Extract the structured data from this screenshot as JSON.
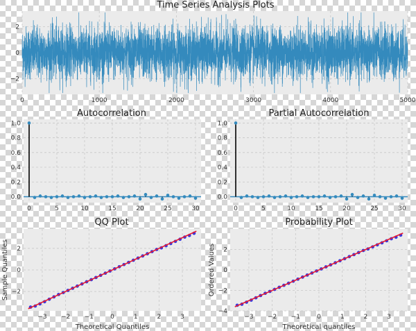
{
  "colors": {
    "panel_bg": "#ebebeb",
    "grid": "#c8c8c8",
    "series": "#348abd",
    "stem": "#000000",
    "qq_points": "#1a1adb",
    "qq_line": "#e8182e"
  },
  "chart_data": [
    {
      "type": "line",
      "title": "Time Series Analysis Plots",
      "xlabel": "",
      "ylabel": "",
      "xlim": [
        0,
        5000
      ],
      "ylim": [
        -3.2,
        3.2
      ],
      "xticks": [
        "0",
        "1000",
        "2000",
        "3000",
        "4000",
        "5000"
      ],
      "yticks": [
        "−2",
        "0",
        "2"
      ],
      "n_points": 5000,
      "distribution": "white noise, mean 0, std 1",
      "grid": true
    },
    {
      "type": "bar",
      "title": "Autocorrelation",
      "xlabel": "",
      "ylabel": "",
      "xlim": [
        -1,
        31
      ],
      "ylim": [
        -0.08,
        1.05
      ],
      "xticks": [
        "0",
        "5",
        "10",
        "15",
        "20",
        "25",
        "30"
      ],
      "yticks": [
        "0.0",
        "0.2",
        "0.4",
        "0.6",
        "0.8",
        "1.0"
      ],
      "lags": [
        0,
        1,
        2,
        3,
        4,
        5,
        6,
        7,
        8,
        9,
        10,
        11,
        12,
        13,
        14,
        15,
        16,
        17,
        18,
        19,
        20,
        21,
        22,
        23,
        24,
        25,
        26,
        27,
        28,
        29,
        30
      ],
      "values": [
        1.0,
        -0.01,
        0.01,
        0.0,
        -0.01,
        0.0,
        0.01,
        -0.01,
        0.0,
        0.01,
        -0.01,
        0.0,
        0.01,
        -0.01,
        0.0,
        0.0,
        0.01,
        -0.01,
        0.0,
        0.01,
        -0.03,
        0.03,
        -0.01,
        0.01,
        -0.03,
        0.02,
        0.0,
        -0.02,
        0.0,
        0.01,
        -0.02
      ],
      "grid": true
    },
    {
      "type": "bar",
      "title": "Partial Autocorrelation",
      "xlabel": "",
      "ylabel": "",
      "xlim": [
        -1,
        31
      ],
      "ylim": [
        -0.08,
        1.05
      ],
      "xticks": [
        "0",
        "5",
        "10",
        "15",
        "20",
        "25",
        "30"
      ],
      "yticks": [
        "0.0",
        "0.2",
        "0.4",
        "0.6",
        "0.8",
        "1.0"
      ],
      "lags": [
        0,
        1,
        2,
        3,
        4,
        5,
        6,
        7,
        8,
        9,
        10,
        11,
        12,
        13,
        14,
        15,
        16,
        17,
        18,
        19,
        20,
        21,
        22,
        23,
        24,
        25,
        26,
        27,
        28,
        29,
        30
      ],
      "values": [
        1.0,
        -0.01,
        0.01,
        0.0,
        -0.01,
        0.0,
        0.01,
        -0.01,
        0.0,
        0.01,
        -0.01,
        0.0,
        0.01,
        -0.01,
        0.0,
        0.0,
        0.01,
        -0.01,
        0.0,
        0.01,
        -0.03,
        0.03,
        -0.01,
        0.01,
        -0.03,
        0.02,
        0.0,
        -0.02,
        0.0,
        0.01,
        -0.02
      ],
      "grid": true
    },
    {
      "type": "scatter",
      "title": "QQ Plot",
      "xlabel": "Theoretical Quantiles",
      "ylabel": "Sample Quantiles",
      "xlim": [
        -3.8,
        3.8
      ],
      "ylim": [
        -3.8,
        3.8
      ],
      "xticks": [
        "−3",
        "−2",
        "−1",
        "0",
        "1",
        "2",
        "3"
      ],
      "yticks": [
        "−2",
        "0",
        "2"
      ],
      "reference_line": [
        [
          -3.6,
          -3.6
        ],
        [
          3.6,
          3.6
        ]
      ],
      "points": [
        [
          -3.5,
          -3.45
        ],
        [
          -3.3,
          -3.35
        ],
        [
          -3.1,
          -3.15
        ],
        [
          -2.9,
          -2.95
        ],
        [
          -2.7,
          -2.72
        ],
        [
          -2.5,
          -2.5
        ],
        [
          -2.3,
          -2.28
        ],
        [
          -2.1,
          -2.1
        ],
        [
          -1.9,
          -1.9
        ],
        [
          -1.7,
          -1.7
        ],
        [
          -1.5,
          -1.5
        ],
        [
          -1.3,
          -1.3
        ],
        [
          -1.1,
          -1.1
        ],
        [
          -0.9,
          -0.9
        ],
        [
          -0.7,
          -0.7
        ],
        [
          -0.5,
          -0.5
        ],
        [
          -0.3,
          -0.3
        ],
        [
          -0.1,
          -0.1
        ],
        [
          0.1,
          0.1
        ],
        [
          0.3,
          0.3
        ],
        [
          0.5,
          0.5
        ],
        [
          0.7,
          0.7
        ],
        [
          0.9,
          0.9
        ],
        [
          1.1,
          1.1
        ],
        [
          1.3,
          1.3
        ],
        [
          1.5,
          1.5
        ],
        [
          1.7,
          1.7
        ],
        [
          1.9,
          1.9
        ],
        [
          2.1,
          2.05
        ],
        [
          2.3,
          2.25
        ],
        [
          2.5,
          2.45
        ],
        [
          2.7,
          2.65
        ],
        [
          2.9,
          2.85
        ],
        [
          3.1,
          3.05
        ],
        [
          3.3,
          3.2
        ],
        [
          3.5,
          3.4
        ]
      ],
      "grid": true
    },
    {
      "type": "scatter",
      "title": "Probability Plot",
      "xlabel": "Theoretical quantiles",
      "ylabel": "Ordered Values",
      "xlim": [
        -3.8,
        3.8
      ],
      "ylim": [
        -4,
        4
      ],
      "xticks": [
        "−3",
        "−2",
        "−1",
        "0",
        "1",
        "2",
        "3"
      ],
      "yticks": [
        "−4",
        "−2",
        "0",
        "2"
      ],
      "reference_line": [
        [
          -3.6,
          -3.6
        ],
        [
          3.6,
          3.6
        ]
      ],
      "points": [
        [
          -3.5,
          -3.45
        ],
        [
          -3.3,
          -3.35
        ],
        [
          -3.1,
          -3.15
        ],
        [
          -2.9,
          -2.95
        ],
        [
          -2.7,
          -2.72
        ],
        [
          -2.5,
          -2.5
        ],
        [
          -2.3,
          -2.28
        ],
        [
          -2.1,
          -2.1
        ],
        [
          -1.9,
          -1.9
        ],
        [
          -1.7,
          -1.7
        ],
        [
          -1.5,
          -1.5
        ],
        [
          -1.3,
          -1.3
        ],
        [
          -1.1,
          -1.1
        ],
        [
          -0.9,
          -0.9
        ],
        [
          -0.7,
          -0.7
        ],
        [
          -0.5,
          -0.5
        ],
        [
          -0.3,
          -0.3
        ],
        [
          -0.1,
          -0.1
        ],
        [
          0.1,
          0.1
        ],
        [
          0.3,
          0.3
        ],
        [
          0.5,
          0.5
        ],
        [
          0.7,
          0.7
        ],
        [
          0.9,
          0.9
        ],
        [
          1.1,
          1.1
        ],
        [
          1.3,
          1.3
        ],
        [
          1.5,
          1.5
        ],
        [
          1.7,
          1.7
        ],
        [
          1.9,
          1.9
        ],
        [
          2.1,
          2.05
        ],
        [
          2.3,
          2.25
        ],
        [
          2.5,
          2.45
        ],
        [
          2.7,
          2.65
        ],
        [
          2.9,
          2.85
        ],
        [
          3.1,
          3.05
        ],
        [
          3.3,
          3.2
        ],
        [
          3.5,
          3.4
        ]
      ],
      "grid": true
    }
  ]
}
